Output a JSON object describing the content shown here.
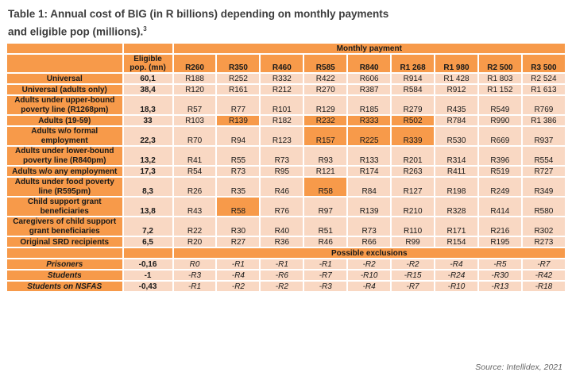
{
  "title_line1": "Table 1: Annual cost of BIG (in R billions) depending on monthly payments",
  "title_line2": "and eligible pop (millions).",
  "title_sup": "3",
  "group_header": "Monthly payment",
  "pop_header": "Eligible pop. (mn)",
  "payments": [
    "R260",
    "R350",
    "R460",
    "R585",
    "R840",
    "R1 268",
    "R1 980",
    "R2 500",
    "R3 500"
  ],
  "rows": [
    {
      "label": "Universal",
      "pop": "60,1",
      "values": [
        "R188",
        "R252",
        "R332",
        "R422",
        "R606",
        "R914",
        "R1 428",
        "R1 803",
        "R2 524"
      ],
      "hl": []
    },
    {
      "label": "Universal (adults only)",
      "pop": "38,4",
      "values": [
        "R120",
        "R161",
        "R212",
        "R270",
        "R387",
        "R584",
        "R912",
        "R1 152",
        "R1 613"
      ],
      "hl": []
    },
    {
      "label": "Adults under upper-bound poverty line (R1268pm)",
      "pop": "18,3",
      "values": [
        "R57",
        "R77",
        "R101",
        "R129",
        "R185",
        "R279",
        "R435",
        "R549",
        "R769"
      ],
      "hl": []
    },
    {
      "label": "Adults (19-59)",
      "pop": "33",
      "values": [
        "R103",
        "R139",
        "R182",
        "R232",
        "R333",
        "R502",
        "R784",
        "R990",
        "R1 386"
      ],
      "hl": [
        1,
        3,
        4,
        5
      ]
    },
    {
      "label": "Adults w/o formal employment",
      "pop": "22,3",
      "values": [
        "R70",
        "R94",
        "R123",
        "R157",
        "R225",
        "R339",
        "R530",
        "R669",
        "R937"
      ],
      "hl": [
        3,
        4,
        5
      ]
    },
    {
      "label": "Adults under lower-bound poverty line (R840pm)",
      "pop": "13,2",
      "values": [
        "R41",
        "R55",
        "R73",
        "R93",
        "R133",
        "R201",
        "R314",
        "R396",
        "R554"
      ],
      "hl": []
    },
    {
      "label": "Adults w/o any employment",
      "pop": "17,3",
      "values": [
        "R54",
        "R73",
        "R95",
        "R121",
        "R174",
        "R263",
        "R411",
        "R519",
        "R727"
      ],
      "hl": []
    },
    {
      "label": "Adults under food poverty line (R595pm)",
      "pop": "8,3",
      "values": [
        "R26",
        "R35",
        "R46",
        "R58",
        "R84",
        "R127",
        "R198",
        "R249",
        "R349"
      ],
      "hl": [
        3
      ]
    },
    {
      "label": "Child support grant beneficiaries",
      "pop": "13,8",
      "values": [
        "R43",
        "R58",
        "R76",
        "R97",
        "R139",
        "R210",
        "R328",
        "R414",
        "R580"
      ],
      "hl": [
        1
      ]
    },
    {
      "label": "Caregivers of child support grant beneficiaries",
      "pop": "7,2",
      "values": [
        "R22",
        "R30",
        "R40",
        "R51",
        "R73",
        "R110",
        "R171",
        "R216",
        "R302"
      ],
      "hl": []
    },
    {
      "label": "Original SRD recipients",
      "pop": "6,5",
      "values": [
        "R20",
        "R27",
        "R36",
        "R46",
        "R66",
        "R99",
        "R154",
        "R195",
        "R273"
      ],
      "hl": []
    }
  ],
  "exclusions_header": "Possible exclusions",
  "exclusions": [
    {
      "label": "Prisoners",
      "pop": "-0,16",
      "values": [
        "R0",
        "-R1",
        "-R1",
        "-R1",
        "-R2",
        "-R2",
        "-R4",
        "-R5",
        "-R7"
      ]
    },
    {
      "label": "Students",
      "pop": "-1",
      "values": [
        "-R3",
        "-R4",
        "-R6",
        "-R7",
        "-R10",
        "-R15",
        "-R24",
        "-R30",
        "-R42"
      ]
    },
    {
      "label": "Students on NSFAS",
      "pop": "-0,43",
      "values": [
        "-R1",
        "-R2",
        "-R2",
        "-R3",
        "-R4",
        "-R7",
        "-R10",
        "-R13",
        "-R18"
      ]
    }
  ],
  "source": "Source: Intellidex, 2021",
  "colors": {
    "header_orange": "#f79a4a",
    "cell_pink": "#f9d8c3"
  }
}
